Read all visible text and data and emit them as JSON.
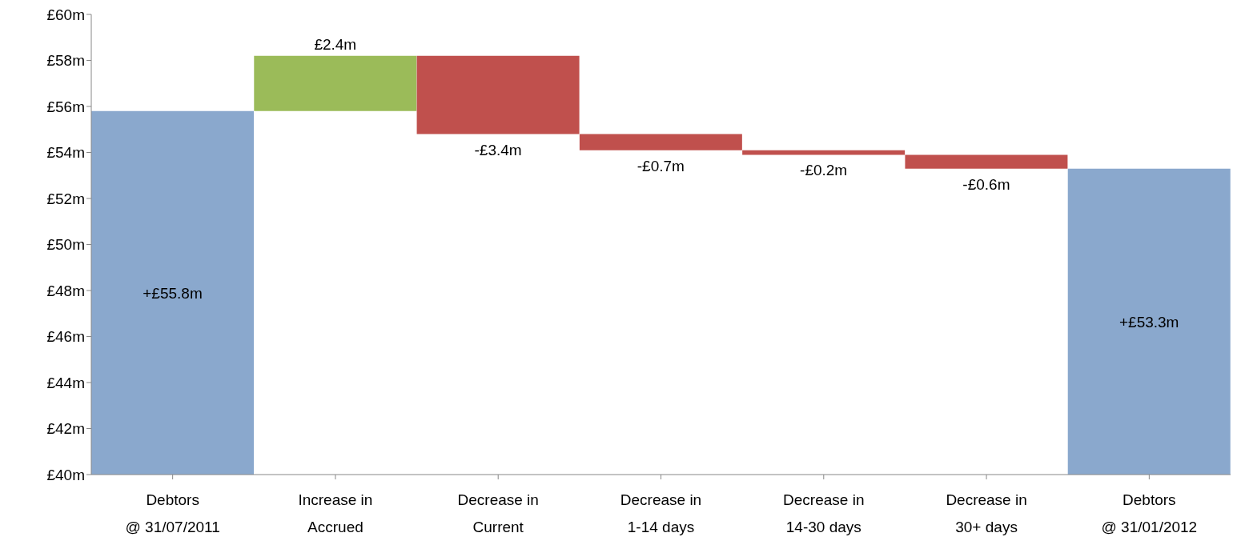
{
  "chart_data": {
    "type": "bar",
    "categories": [
      "Debtors\n@ 31/07/2011",
      "Increase in\nAccrued",
      "Decrease in\nCurrent",
      "Decrease in\n1-14 days",
      "Decrease in\n14-30 days",
      "Decrease in\n30+ days",
      "Debtors\n@ 31/01/2012"
    ],
    "values": [
      55.8,
      2.4,
      -3.4,
      -0.7,
      -0.2,
      -0.6,
      53.3
    ],
    "base": [
      null,
      55.8,
      58.2,
      54.8,
      54.1,
      53.9,
      null
    ],
    "colors": [
      "#8aa8cd",
      "#9bbb59",
      "#c0504d",
      "#c0504d",
      "#c0504d",
      "#c0504d",
      "#8aa8cd"
    ],
    "value_labels": [
      "+£55.8m",
      "£2.4m",
      "-£3.4m",
      "-£0.7m",
      "-£0.2m",
      "-£0.6m",
      "+£53.3m"
    ],
    "ylim": [
      40,
      60
    ],
    "yticks": [
      {
        "value": 40,
        "label": "£40m"
      },
      {
        "value": 42,
        "label": "£42m"
      },
      {
        "value": 44,
        "label": "£44m"
      },
      {
        "value": 46,
        "label": "£46m"
      },
      {
        "value": 48,
        "label": "£48m"
      },
      {
        "value": 50,
        "label": "£50m"
      },
      {
        "value": 52,
        "label": "£52m"
      },
      {
        "value": 54,
        "label": "£54m"
      },
      {
        "value": 56,
        "label": "£56m"
      },
      {
        "value": 58,
        "label": "£58m"
      },
      {
        "value": 60,
        "label": "£60m"
      }
    ],
    "grid": false,
    "legend": false
  }
}
